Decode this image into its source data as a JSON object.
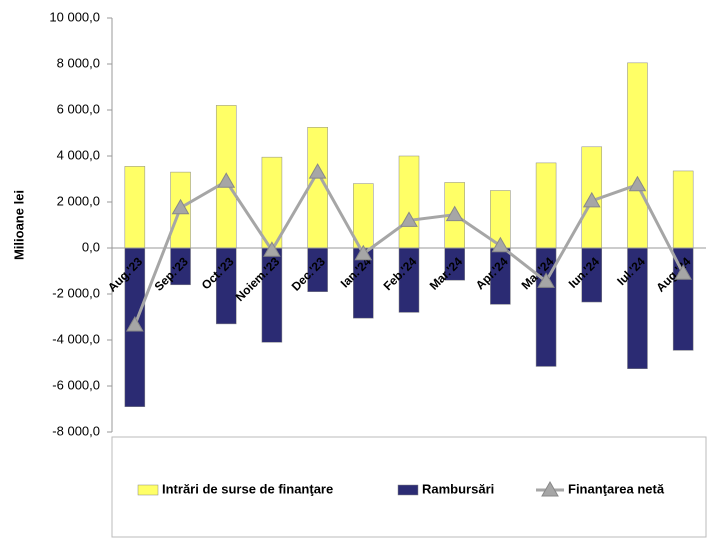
{
  "chart_data": {
    "type": "bar_line",
    "y_label": "Milioane lei",
    "categories": [
      "Aug.'23",
      "Sep.'23",
      "Oct.'23",
      "Noiem.'23",
      "Dec.'23",
      "Ian.'24",
      "Feb.'24",
      "Mar.'24",
      "Apr.'24",
      "Mai.'24",
      "Iun.'24",
      "Iul.'24",
      "Aug.'24"
    ],
    "series": [
      {
        "name": "Intrări de surse de finanţare",
        "color": "#ffff66",
        "kind": "bar",
        "values": [
          3550,
          3300,
          6200,
          3950,
          5250,
          2800,
          4000,
          2850,
          2500,
          3700,
          4400,
          8050,
          3350
        ]
      },
      {
        "name": "Rambursări",
        "color": "#2b2b73",
        "kind": "bar",
        "values": [
          -6900,
          -1600,
          -3300,
          -4100,
          -1900,
          -3050,
          -2800,
          -1400,
          -2450,
          -5150,
          -2350,
          -5250,
          -4450
        ]
      },
      {
        "name": "Finanţarea netă",
        "color": "#a6a6a6",
        "kind": "line",
        "values": [
          -3350,
          1750,
          2900,
          -100,
          3300,
          -250,
          1200,
          1450,
          100,
          -1450,
          2050,
          2750,
          -1100
        ]
      }
    ],
    "ylim": [
      -8000,
      10000
    ],
    "yticks": [
      {
        "value": -8000,
        "label": "-8 000,0"
      },
      {
        "value": -6000,
        "label": "-6 000,0"
      },
      {
        "value": -4000,
        "label": "-4 000,0"
      },
      {
        "value": -2000,
        "label": "-2 000,0"
      },
      {
        "value": 0,
        "label": "0,0"
      },
      {
        "value": 2000,
        "label": "2 000,0"
      },
      {
        "value": 4000,
        "label": "4 000,0"
      },
      {
        "value": 6000,
        "label": "6 000,0"
      },
      {
        "value": 8000,
        "label": "8 000,0"
      },
      {
        "value": 10000,
        "label": "10 000,0"
      }
    ],
    "legend": "bottom"
  }
}
